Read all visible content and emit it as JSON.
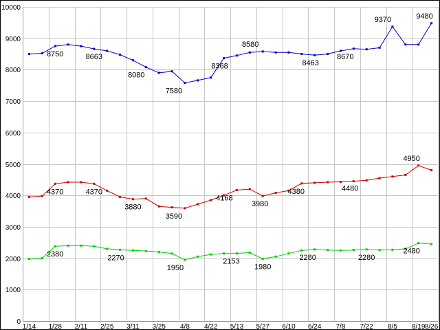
{
  "chart_data": {
    "type": "line",
    "title": "",
    "background": "#ffffff",
    "grid": true,
    "grid_color": "#c6c6c6",
    "axis_color": "#9a9a9a",
    "border_color": "#000000",
    "text_color": "#000000",
    "ylim": [
      0,
      10000
    ],
    "y_tick_step": 1000,
    "y_tick_labels": [
      "0",
      "1000",
      "2000",
      "3000",
      "4000",
      "5000",
      "6000",
      "7000",
      "8000",
      "9000",
      "10000"
    ],
    "point_count": 32,
    "x_ticks": [
      {
        "i": 0,
        "label": "1/14"
      },
      {
        "i": 2,
        "label": "1/28"
      },
      {
        "i": 4,
        "label": "2/11"
      },
      {
        "i": 6,
        "label": "2/25"
      },
      {
        "i": 8,
        "label": "3/11"
      },
      {
        "i": 10,
        "label": "3/25"
      },
      {
        "i": 12,
        "label": "4/8"
      },
      {
        "i": 14,
        "label": "4/22"
      },
      {
        "i": 16,
        "label": "5/13"
      },
      {
        "i": 18,
        "label": "5/27"
      },
      {
        "i": 20,
        "label": "6/10"
      },
      {
        "i": 22,
        "label": "6/24"
      },
      {
        "i": 24,
        "label": "7/8"
      },
      {
        "i": 26,
        "label": "7/22"
      },
      {
        "i": 28,
        "label": "8/5"
      },
      {
        "i": 30,
        "label": "8/19"
      },
      {
        "i": 31,
        "label": "8/26"
      }
    ],
    "series": [
      {
        "name": "series-blue",
        "color": "#0000cc",
        "values": [
          8500,
          8520,
          8750,
          8800,
          8750,
          8663,
          8600,
          8480,
          8300,
          8080,
          7900,
          7950,
          7580,
          7660,
          7750,
          8368,
          8450,
          8550,
          8580,
          8550,
          8550,
          8500,
          8463,
          8500,
          8600,
          8670,
          8650,
          8700,
          9370,
          8800,
          8800,
          9480
        ]
      },
      {
        "name": "series-red",
        "color": "#cc0000",
        "values": [
          3950,
          3980,
          4370,
          4420,
          4420,
          4370,
          4150,
          3950,
          3880,
          3900,
          3650,
          3620,
          3590,
          3720,
          3850,
          4000,
          4168,
          4200,
          3980,
          4080,
          4150,
          4380,
          4400,
          4420,
          4430,
          4450,
          4480,
          4550,
          4600,
          4650,
          4950,
          4800
        ]
      },
      {
        "name": "series-green",
        "color": "#00cc00",
        "values": [
          1980,
          2000,
          2380,
          2400,
          2400,
          2380,
          2300,
          2270,
          2250,
          2230,
          2200,
          2150,
          1950,
          2050,
          2120,
          2150,
          2153,
          2180,
          1980,
          2050,
          2150,
          2250,
          2280,
          2260,
          2250,
          2260,
          2280,
          2260,
          2270,
          2300,
          2480,
          2450
        ]
      }
    ],
    "annotations": [
      {
        "series": 0,
        "i": 2,
        "text": "8750",
        "pos": "below",
        "dx": 0
      },
      {
        "series": 0,
        "i": 5,
        "text": "8663",
        "pos": "below",
        "dx": 0
      },
      {
        "series": 0,
        "i": 9,
        "text": "8080",
        "pos": "below",
        "dx": -14
      },
      {
        "series": 0,
        "i": 12,
        "text": "7580",
        "pos": "below",
        "dx": -16
      },
      {
        "series": 0,
        "i": 15,
        "text": "8368",
        "pos": "below",
        "dx": -6
      },
      {
        "series": 0,
        "i": 18,
        "text": "8580",
        "pos": "above",
        "dx": -18
      },
      {
        "series": 0,
        "i": 22,
        "text": "8463",
        "pos": "below",
        "dx": -6
      },
      {
        "series": 0,
        "i": 25,
        "text": "8670",
        "pos": "below",
        "dx": -12
      },
      {
        "series": 0,
        "i": 28,
        "text": "9370",
        "pos": "above",
        "dx": -14
      },
      {
        "series": 0,
        "i": 31,
        "text": "9480",
        "pos": "above",
        "dx": -10
      },
      {
        "series": 1,
        "i": 2,
        "text": "4370",
        "pos": "below",
        "dx": 0
      },
      {
        "series": 1,
        "i": 5,
        "text": "4370",
        "pos": "below",
        "dx": 0
      },
      {
        "series": 1,
        "i": 8,
        "text": "3880",
        "pos": "below",
        "dx": 0
      },
      {
        "series": 1,
        "i": 12,
        "text": "3590",
        "pos": "below",
        "dx": -16
      },
      {
        "series": 1,
        "i": 16,
        "text": "4168",
        "pos": "below",
        "dx": -18
      },
      {
        "series": 1,
        "i": 18,
        "text": "3980",
        "pos": "below",
        "dx": -4
      },
      {
        "series": 1,
        "i": 21,
        "text": "4380",
        "pos": "below",
        "dx": -8
      },
      {
        "series": 1,
        "i": 26,
        "text": "4480",
        "pos": "below",
        "dx": -24
      },
      {
        "series": 1,
        "i": 30,
        "text": "4950",
        "pos": "above",
        "dx": -10
      },
      {
        "series": 2,
        "i": 2,
        "text": "2380",
        "pos": "below",
        "dx": 0
      },
      {
        "series": 2,
        "i": 7,
        "text": "2270",
        "pos": "below",
        "dx": -6
      },
      {
        "series": 2,
        "i": 12,
        "text": "1950",
        "pos": "below",
        "dx": -14
      },
      {
        "series": 2,
        "i": 16,
        "text": "2153",
        "pos": "below",
        "dx": -8
      },
      {
        "series": 2,
        "i": 18,
        "text": "1980",
        "pos": "below",
        "dx": 0
      },
      {
        "series": 2,
        "i": 22,
        "text": "2280",
        "pos": "below",
        "dx": -10
      },
      {
        "series": 2,
        "i": 26,
        "text": "2280",
        "pos": "below",
        "dx": 0
      },
      {
        "series": 2,
        "i": 30,
        "text": "2480",
        "pos": "below",
        "dx": -10
      }
    ]
  }
}
